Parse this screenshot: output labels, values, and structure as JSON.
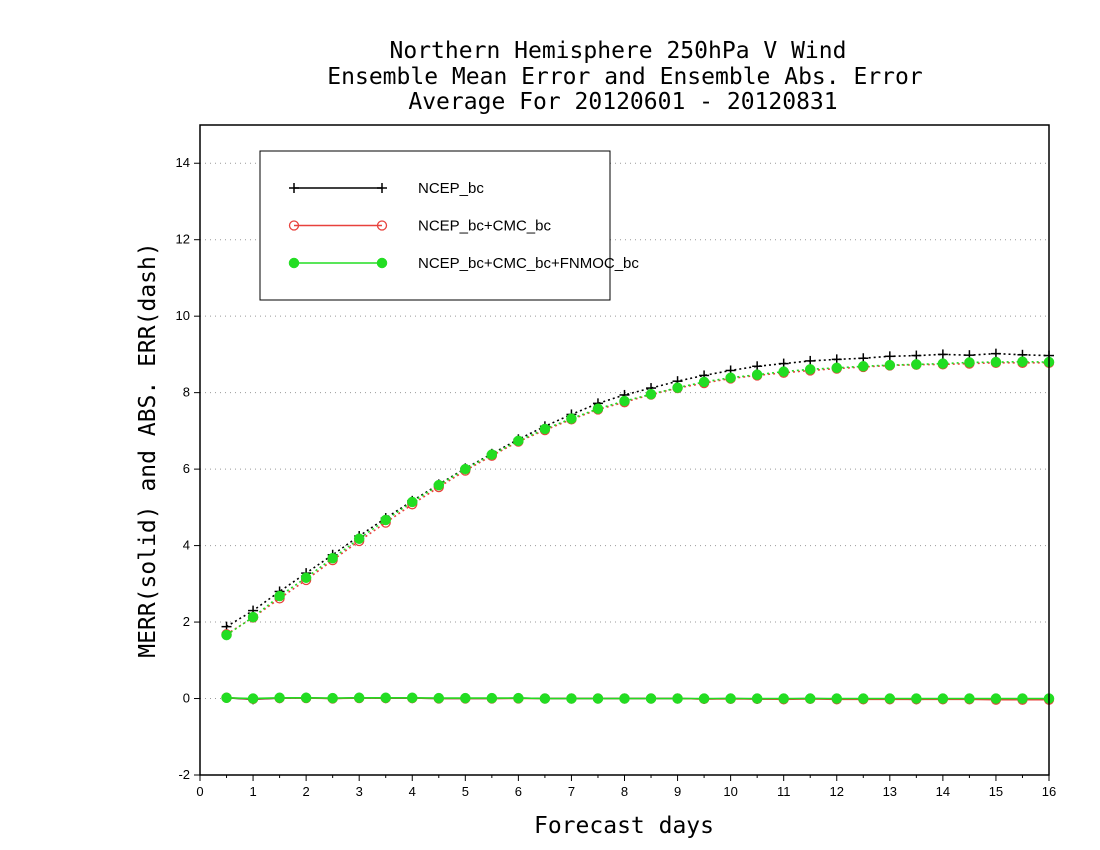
{
  "chart_data": {
    "type": "line",
    "title_lines": [
      "Northern Hemisphere 250hPa V Wind",
      "Ensemble Mean Error and Ensemble Abs. Error",
      "Average For 20120601 - 20120831"
    ],
    "xlabel": "Forecast days",
    "ylabel": "MERR(solid) and ABS. ERR(dash)",
    "xlim": [
      0,
      16
    ],
    "ylim": [
      -2,
      15
    ],
    "x_ticks": [
      "0",
      "1",
      "2",
      "3",
      "4",
      "5",
      "6",
      "7",
      "8",
      "9",
      "10",
      "11",
      "12",
      "13",
      "14",
      "15",
      "16"
    ],
    "y_ticks": [
      "-2",
      "0",
      "2",
      "4",
      "6",
      "8",
      "10",
      "12",
      "14"
    ],
    "grid": "horizontal-dotted",
    "legend_position": "top-left",
    "x": [
      0.5,
      1,
      1.5,
      2,
      2.5,
      3,
      3.5,
      4,
      4.5,
      5,
      5.5,
      6,
      6.5,
      7,
      7.5,
      8,
      8.5,
      9,
      9.5,
      10,
      10.5,
      11,
      11.5,
      12,
      12.5,
      13,
      13.5,
      14,
      14.5,
      15,
      15.5,
      16
    ],
    "series": [
      {
        "name": "NCEP_bc",
        "color": "#000000",
        "marker": "plus",
        "abs_err": [
          1.88,
          2.3,
          2.8,
          3.28,
          3.76,
          4.25,
          4.72,
          5.17,
          5.6,
          6.02,
          6.4,
          6.78,
          7.12,
          7.43,
          7.72,
          7.94,
          8.12,
          8.3,
          8.45,
          8.58,
          8.69,
          8.76,
          8.83,
          8.87,
          8.9,
          8.95,
          8.97,
          9.0,
          8.98,
          9.02,
          8.99,
          8.97
        ],
        "mean_err": [
          0.02,
          -0.02,
          0.01,
          0.02,
          0.0,
          0.02,
          0.01,
          0.01,
          0.0,
          0.0,
          0.0,
          0.01,
          0.0,
          0.0,
          0.0,
          0.0,
          0.0,
          0.0,
          -0.01,
          0.0,
          -0.01,
          -0.01,
          0.0,
          -0.01,
          -0.01,
          -0.01,
          -0.02,
          -0.01,
          -0.01,
          -0.02,
          -0.02,
          -0.02
        ]
      },
      {
        "name": "NCEP_bc+CMC_bc",
        "color": "#e8413c",
        "marker": "open-circle",
        "abs_err": [
          1.68,
          2.12,
          2.62,
          3.1,
          3.62,
          4.12,
          4.6,
          5.08,
          5.53,
          5.96,
          6.35,
          6.72,
          7.02,
          7.3,
          7.56,
          7.75,
          7.95,
          8.12,
          8.25,
          8.37,
          8.45,
          8.52,
          8.58,
          8.63,
          8.67,
          8.71,
          8.73,
          8.74,
          8.76,
          8.78,
          8.78,
          8.78
        ],
        "mean_err": [
          0.02,
          -0.01,
          0.01,
          0.01,
          0.0,
          0.01,
          0.01,
          0.01,
          0.0,
          0.0,
          0.0,
          0.0,
          0.0,
          0.0,
          0.0,
          0.0,
          0.0,
          0.0,
          -0.01,
          -0.01,
          -0.01,
          -0.02,
          -0.01,
          -0.02,
          -0.02,
          -0.02,
          -0.02,
          -0.02,
          -0.02,
          -0.03,
          -0.03,
          -0.03
        ]
      },
      {
        "name": "NCEP_bc+CMC_bc+FNMOC_bc",
        "color": "#22dd22",
        "marker": "filled-circle",
        "abs_err": [
          1.66,
          2.13,
          2.68,
          3.16,
          3.67,
          4.18,
          4.67,
          5.14,
          5.58,
          6.0,
          6.38,
          6.74,
          7.05,
          7.32,
          7.58,
          7.78,
          7.96,
          8.13,
          8.28,
          8.39,
          8.47,
          8.55,
          8.61,
          8.65,
          8.69,
          8.72,
          8.74,
          8.76,
          8.79,
          8.8,
          8.81,
          8.8
        ],
        "mean_err": [
          0.02,
          0.0,
          0.02,
          0.02,
          0.01,
          0.02,
          0.02,
          0.02,
          0.01,
          0.01,
          0.01,
          0.01,
          0.0,
          0.0,
          0.0,
          0.0,
          0.0,
          0.0,
          0.0,
          0.0,
          0.0,
          0.0,
          0.0,
          0.0,
          0.0,
          0.0,
          0.0,
          0.0,
          0.0,
          0.0,
          0.0,
          0.0
        ]
      }
    ]
  }
}
